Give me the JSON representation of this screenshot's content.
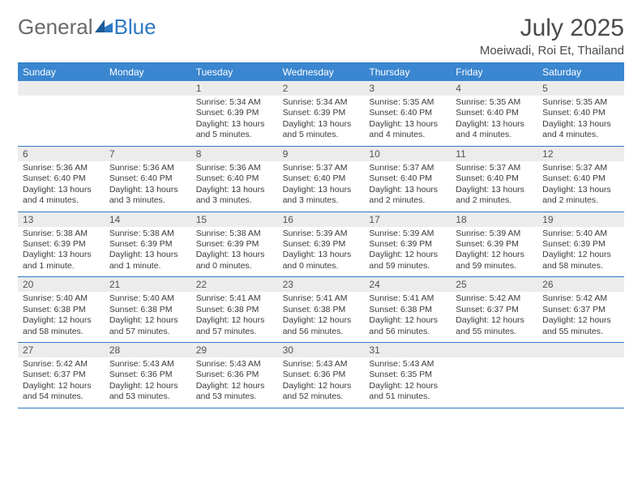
{
  "brand": {
    "general": "General",
    "blue": "Blue"
  },
  "title": "July 2025",
  "location": "Moeiwadi, Roi Et, Thailand",
  "colors": {
    "header_bg": "#3a86d0",
    "border": "#2f78c2",
    "daynum_bg": "#ececec",
    "text": "#3a3a3a"
  },
  "dow": [
    "Sunday",
    "Monday",
    "Tuesday",
    "Wednesday",
    "Thursday",
    "Friday",
    "Saturday"
  ],
  "weeks": [
    [
      {
        "n": "",
        "sr": "",
        "ss": "",
        "dl": ""
      },
      {
        "n": "",
        "sr": "",
        "ss": "",
        "dl": ""
      },
      {
        "n": "1",
        "sr": "Sunrise: 5:34 AM",
        "ss": "Sunset: 6:39 PM",
        "dl": "Daylight: 13 hours and 5 minutes."
      },
      {
        "n": "2",
        "sr": "Sunrise: 5:34 AM",
        "ss": "Sunset: 6:39 PM",
        "dl": "Daylight: 13 hours and 5 minutes."
      },
      {
        "n": "3",
        "sr": "Sunrise: 5:35 AM",
        "ss": "Sunset: 6:40 PM",
        "dl": "Daylight: 13 hours and 4 minutes."
      },
      {
        "n": "4",
        "sr": "Sunrise: 5:35 AM",
        "ss": "Sunset: 6:40 PM",
        "dl": "Daylight: 13 hours and 4 minutes."
      },
      {
        "n": "5",
        "sr": "Sunrise: 5:35 AM",
        "ss": "Sunset: 6:40 PM",
        "dl": "Daylight: 13 hours and 4 minutes."
      }
    ],
    [
      {
        "n": "6",
        "sr": "Sunrise: 5:36 AM",
        "ss": "Sunset: 6:40 PM",
        "dl": "Daylight: 13 hours and 4 minutes."
      },
      {
        "n": "7",
        "sr": "Sunrise: 5:36 AM",
        "ss": "Sunset: 6:40 PM",
        "dl": "Daylight: 13 hours and 3 minutes."
      },
      {
        "n": "8",
        "sr": "Sunrise: 5:36 AM",
        "ss": "Sunset: 6:40 PM",
        "dl": "Daylight: 13 hours and 3 minutes."
      },
      {
        "n": "9",
        "sr": "Sunrise: 5:37 AM",
        "ss": "Sunset: 6:40 PM",
        "dl": "Daylight: 13 hours and 3 minutes."
      },
      {
        "n": "10",
        "sr": "Sunrise: 5:37 AM",
        "ss": "Sunset: 6:40 PM",
        "dl": "Daylight: 13 hours and 2 minutes."
      },
      {
        "n": "11",
        "sr": "Sunrise: 5:37 AM",
        "ss": "Sunset: 6:40 PM",
        "dl": "Daylight: 13 hours and 2 minutes."
      },
      {
        "n": "12",
        "sr": "Sunrise: 5:37 AM",
        "ss": "Sunset: 6:40 PM",
        "dl": "Daylight: 13 hours and 2 minutes."
      }
    ],
    [
      {
        "n": "13",
        "sr": "Sunrise: 5:38 AM",
        "ss": "Sunset: 6:39 PM",
        "dl": "Daylight: 13 hours and 1 minute."
      },
      {
        "n": "14",
        "sr": "Sunrise: 5:38 AM",
        "ss": "Sunset: 6:39 PM",
        "dl": "Daylight: 13 hours and 1 minute."
      },
      {
        "n": "15",
        "sr": "Sunrise: 5:38 AM",
        "ss": "Sunset: 6:39 PM",
        "dl": "Daylight: 13 hours and 0 minutes."
      },
      {
        "n": "16",
        "sr": "Sunrise: 5:39 AM",
        "ss": "Sunset: 6:39 PM",
        "dl": "Daylight: 13 hours and 0 minutes."
      },
      {
        "n": "17",
        "sr": "Sunrise: 5:39 AM",
        "ss": "Sunset: 6:39 PM",
        "dl": "Daylight: 12 hours and 59 minutes."
      },
      {
        "n": "18",
        "sr": "Sunrise: 5:39 AM",
        "ss": "Sunset: 6:39 PM",
        "dl": "Daylight: 12 hours and 59 minutes."
      },
      {
        "n": "19",
        "sr": "Sunrise: 5:40 AM",
        "ss": "Sunset: 6:39 PM",
        "dl": "Daylight: 12 hours and 58 minutes."
      }
    ],
    [
      {
        "n": "20",
        "sr": "Sunrise: 5:40 AM",
        "ss": "Sunset: 6:38 PM",
        "dl": "Daylight: 12 hours and 58 minutes."
      },
      {
        "n": "21",
        "sr": "Sunrise: 5:40 AM",
        "ss": "Sunset: 6:38 PM",
        "dl": "Daylight: 12 hours and 57 minutes."
      },
      {
        "n": "22",
        "sr": "Sunrise: 5:41 AM",
        "ss": "Sunset: 6:38 PM",
        "dl": "Daylight: 12 hours and 57 minutes."
      },
      {
        "n": "23",
        "sr": "Sunrise: 5:41 AM",
        "ss": "Sunset: 6:38 PM",
        "dl": "Daylight: 12 hours and 56 minutes."
      },
      {
        "n": "24",
        "sr": "Sunrise: 5:41 AM",
        "ss": "Sunset: 6:38 PM",
        "dl": "Daylight: 12 hours and 56 minutes."
      },
      {
        "n": "25",
        "sr": "Sunrise: 5:42 AM",
        "ss": "Sunset: 6:37 PM",
        "dl": "Daylight: 12 hours and 55 minutes."
      },
      {
        "n": "26",
        "sr": "Sunrise: 5:42 AM",
        "ss": "Sunset: 6:37 PM",
        "dl": "Daylight: 12 hours and 55 minutes."
      }
    ],
    [
      {
        "n": "27",
        "sr": "Sunrise: 5:42 AM",
        "ss": "Sunset: 6:37 PM",
        "dl": "Daylight: 12 hours and 54 minutes."
      },
      {
        "n": "28",
        "sr": "Sunrise: 5:43 AM",
        "ss": "Sunset: 6:36 PM",
        "dl": "Daylight: 12 hours and 53 minutes."
      },
      {
        "n": "29",
        "sr": "Sunrise: 5:43 AM",
        "ss": "Sunset: 6:36 PM",
        "dl": "Daylight: 12 hours and 53 minutes."
      },
      {
        "n": "30",
        "sr": "Sunrise: 5:43 AM",
        "ss": "Sunset: 6:36 PM",
        "dl": "Daylight: 12 hours and 52 minutes."
      },
      {
        "n": "31",
        "sr": "Sunrise: 5:43 AM",
        "ss": "Sunset: 6:35 PM",
        "dl": "Daylight: 12 hours and 51 minutes."
      },
      {
        "n": "",
        "sr": "",
        "ss": "",
        "dl": ""
      },
      {
        "n": "",
        "sr": "",
        "ss": "",
        "dl": ""
      }
    ]
  ]
}
